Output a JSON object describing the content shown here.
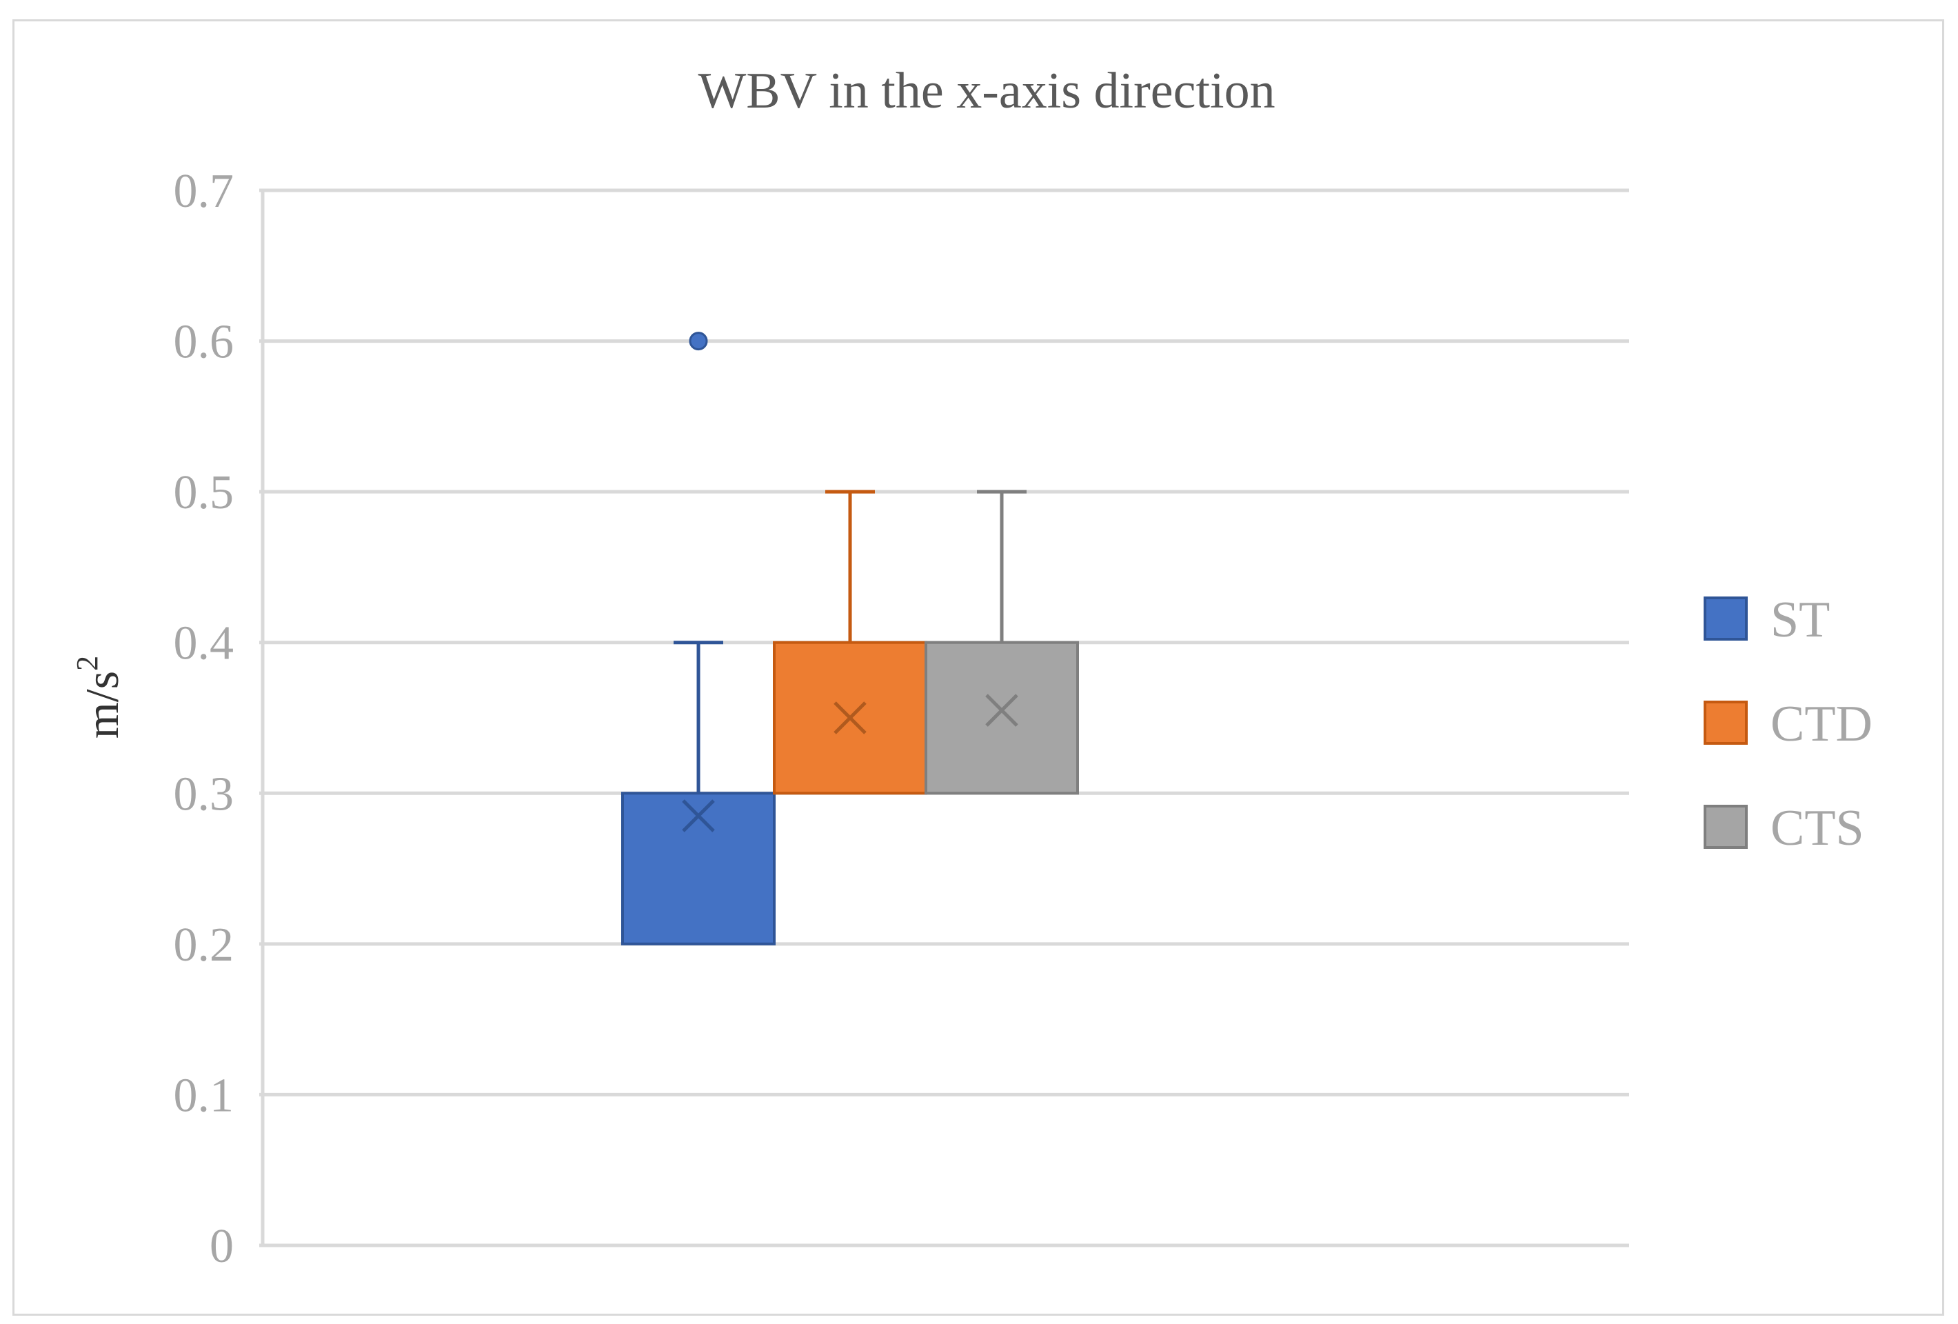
{
  "chart_data": {
    "type": "box",
    "title": "WBV in the x-axis direction",
    "ylabel_base": "m/s",
    "ylabel_exp": "2",
    "xlabel": "",
    "ylim": [
      0,
      0.7
    ],
    "yticks": [
      0,
      0.1,
      0.2,
      0.3,
      0.4,
      0.5,
      0.6,
      0.7
    ],
    "ytick_labels": [
      "0",
      "0.1",
      "0.2",
      "0.3",
      "0.4",
      "0.5",
      "0.6",
      "0.7"
    ],
    "grid": true,
    "legend_position": "right",
    "series": [
      {
        "name": "ST",
        "color": "#4472c4",
        "stroke": "#2f5597",
        "min": 0.2,
        "q1": 0.2,
        "median": 0.3,
        "q3": 0.3,
        "max": 0.4,
        "mean": 0.285,
        "outliers": [
          0.6
        ]
      },
      {
        "name": "CTD",
        "color": "#ed7d31",
        "stroke": "#c55a11",
        "min": 0.3,
        "q1": 0.3,
        "median": 0.4,
        "q3": 0.4,
        "max": 0.5,
        "mean": 0.35,
        "outliers": []
      },
      {
        "name": "CTS",
        "color": "#a5a5a5",
        "stroke": "#7f7f7f",
        "min": 0.3,
        "q1": 0.3,
        "median": 0.4,
        "q3": 0.4,
        "max": 0.5,
        "mean": 0.355,
        "outliers": []
      }
    ]
  }
}
